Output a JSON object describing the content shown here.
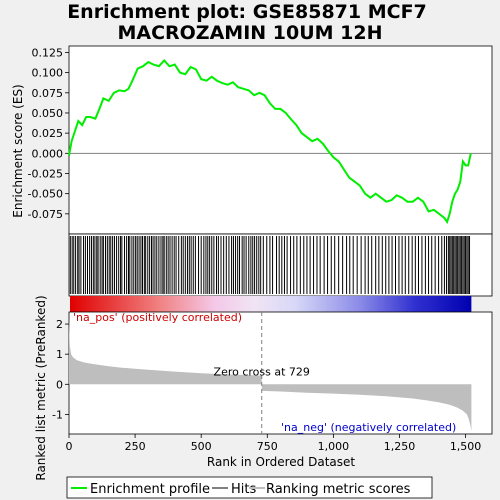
{
  "chart_data": {
    "type": "line",
    "title_line1": "Enrichment plot: GSE85871 MCF7",
    "title_line2": "MACROZAMIN 10UM 12H",
    "ylabel_top": "Enrichment score (ES)",
    "ylabel_bottom": "Ranked list metric (PreRanked)",
    "xlabel": "Rank in Ordered Dataset",
    "top_panel": {
      "ylim": [
        -0.1,
        0.133
      ],
      "yticks": [
        -0.075,
        -0.05,
        -0.025,
        0.0,
        0.025,
        0.05,
        0.075,
        0.1,
        0.125
      ],
      "ytick_labels": [
        "-0.075",
        "-0.050",
        "-0.025",
        "0.000",
        "0.025",
        "0.050",
        "0.075",
        "0.100",
        "0.125"
      ],
      "es_curve": {
        "x": [
          0,
          10,
          20,
          35,
          50,
          65,
          80,
          100,
          115,
          130,
          150,
          170,
          190,
          210,
          225,
          240,
          260,
          280,
          300,
          320,
          340,
          360,
          380,
          400,
          420,
          440,
          460,
          480,
          500,
          520,
          540,
          560,
          580,
          600,
          620,
          640,
          660,
          680,
          700,
          720,
          740,
          760,
          780,
          800,
          820,
          840,
          860,
          880,
          900,
          920,
          940,
          960,
          980,
          1000,
          1020,
          1040,
          1060,
          1080,
          1100,
          1120,
          1140,
          1160,
          1180,
          1200,
          1220,
          1240,
          1260,
          1280,
          1300,
          1320,
          1340,
          1360,
          1380,
          1400,
          1420,
          1430,
          1440,
          1450,
          1460,
          1470,
          1480,
          1490,
          1500,
          1510,
          1520
        ],
        "y": [
          -0.003,
          0.015,
          0.025,
          0.04,
          0.035,
          0.045,
          0.045,
          0.043,
          0.055,
          0.068,
          0.065,
          0.075,
          0.078,
          0.077,
          0.08,
          0.09,
          0.105,
          0.108,
          0.113,
          0.11,
          0.108,
          0.115,
          0.108,
          0.11,
          0.1,
          0.098,
          0.107,
          0.104,
          0.092,
          0.09,
          0.095,
          0.09,
          0.087,
          0.085,
          0.088,
          0.082,
          0.08,
          0.078,
          0.072,
          0.075,
          0.072,
          0.062,
          0.055,
          0.055,
          0.05,
          0.042,
          0.035,
          0.025,
          0.02,
          0.015,
          0.018,
          0.012,
          0.003,
          -0.005,
          -0.01,
          -0.02,
          -0.03,
          -0.035,
          -0.04,
          -0.05,
          -0.055,
          -0.05,
          -0.055,
          -0.06,
          -0.058,
          -0.052,
          -0.055,
          -0.06,
          -0.06,
          -0.055,
          -0.06,
          -0.072,
          -0.07,
          -0.075,
          -0.08,
          -0.085,
          -0.075,
          -0.06,
          -0.05,
          -0.045,
          -0.035,
          -0.01,
          -0.015,
          -0.015,
          0.0
        ]
      }
    },
    "hits": [
      5,
      12,
      18,
      25,
      33,
      38,
      45,
      55,
      62,
      70,
      78,
      85,
      92,
      98,
      105,
      110,
      118,
      125,
      130,
      138,
      145,
      152,
      158,
      165,
      172,
      180,
      188,
      195,
      200,
      210,
      218,
      225,
      230,
      238,
      245,
      252,
      258,
      265,
      272,
      278,
      285,
      290,
      298,
      305,
      312,
      318,
      325,
      332,
      340,
      348,
      355,
      360,
      368,
      375,
      382,
      390,
      398,
      405,
      415,
      425,
      432,
      440,
      448,
      455,
      462,
      470,
      478,
      490,
      500,
      510,
      518,
      525,
      532,
      540,
      548,
      558,
      565,
      575,
      585,
      595,
      605,
      615,
      622,
      630,
      638,
      645,
      655,
      662,
      670,
      680,
      688,
      695,
      702,
      710,
      718,
      725,
      735,
      748,
      760,
      770,
      785,
      795,
      805,
      815,
      825,
      838,
      850,
      862,
      875,
      888,
      900,
      912,
      925,
      938,
      950,
      965,
      978,
      992,
      1005,
      1020,
      1035,
      1050,
      1062,
      1075,
      1090,
      1105,
      1120,
      1132,
      1145,
      1160,
      1172,
      1185,
      1198,
      1210,
      1222,
      1235,
      1248,
      1260,
      1272,
      1285,
      1298,
      1310,
      1322,
      1335,
      1348,
      1360,
      1372,
      1385,
      1398,
      1410,
      1420,
      1428,
      1435,
      1440,
      1445,
      1450,
      1455,
      1460,
      1465,
      1470,
      1475,
      1480,
      1485,
      1490,
      1495,
      1500,
      1505,
      1510,
      1515
    ],
    "bottom_panel": {
      "ylim": [
        -1.65,
        2.4
      ],
      "yticks": [
        -1,
        0,
        1,
        2
      ],
      "ytick_labels": [
        "-1",
        "0",
        "1",
        "2"
      ],
      "metric_curve": {
        "x": [
          0,
          3,
          8,
          15,
          30,
          60,
          100,
          150,
          200,
          300,
          400,
          500,
          600,
          700,
          728,
          729,
          730,
          800,
          900,
          1000,
          1100,
          1200,
          1300,
          1350,
          1400,
          1440,
          1470,
          1490,
          1505,
          1512,
          1518,
          1522
        ],
        "y": [
          2.2,
          1.3,
          1.0,
          0.9,
          0.8,
          0.72,
          0.66,
          0.6,
          0.55,
          0.48,
          0.42,
          0.37,
          0.33,
          0.3,
          0.29,
          0.0,
          -0.22,
          -0.24,
          -0.28,
          -0.31,
          -0.35,
          -0.4,
          -0.47,
          -0.53,
          -0.6,
          -0.68,
          -0.78,
          -0.88,
          -1.0,
          -1.15,
          -1.35,
          -1.55
        ]
      }
    },
    "xlim": [
      0,
      1600
    ],
    "xticks": [
      0,
      250,
      500,
      750,
      1000,
      1250,
      1500
    ],
    "xtick_labels": [
      "0",
      "250",
      "500",
      "750",
      "1,000",
      "1,250",
      "1,500"
    ],
    "zero_cross": 729,
    "zero_cross_label": "Zero cross at 729",
    "pos_label": "'na_pos' (positively correlated)",
    "neg_label": "'na_neg' (negatively correlated)",
    "legend": [
      {
        "name": "Enrichment profile",
        "color": "#00ee00"
      },
      {
        "name": "Hits",
        "color": "#000000"
      },
      {
        "name": "Ranking metric scores",
        "color": "#bebebe"
      }
    ],
    "colors": {
      "es_line": "#00ee00",
      "hit_line": "#000000",
      "metric_fill": "#bebebe",
      "pos_text": "#cc0000",
      "neg_text": "#0000cc"
    },
    "n_genes": 1522
  }
}
